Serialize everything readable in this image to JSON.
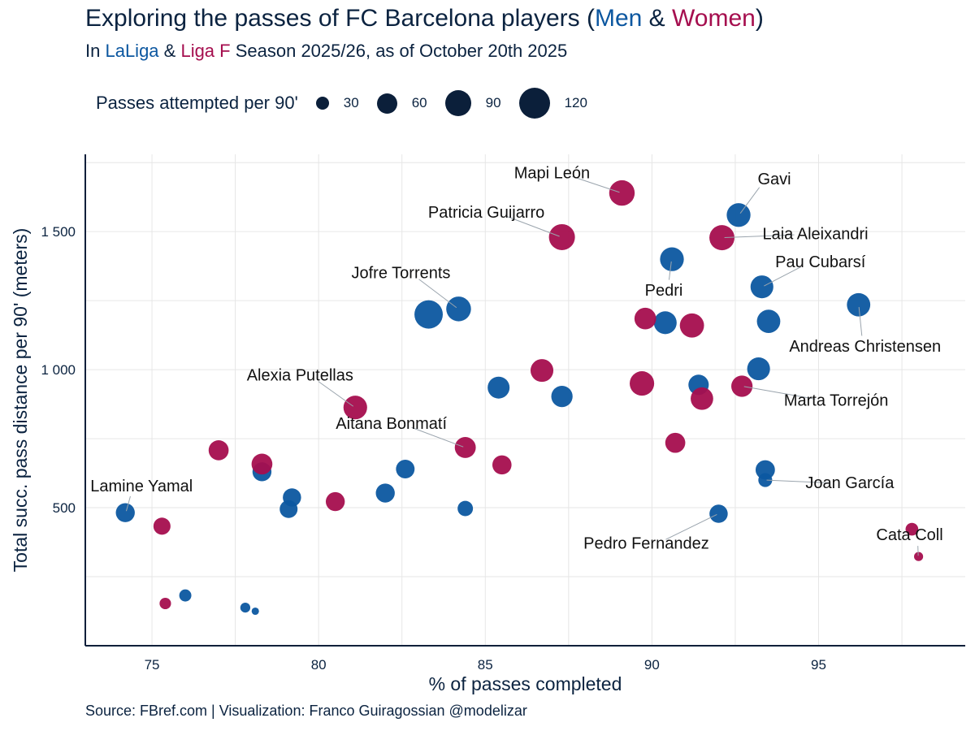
{
  "header": {
    "title_parts": [
      "Exploring the passes of FC Barcelona players (",
      "Men",
      " & ",
      "Women",
      ")"
    ],
    "subtitle_parts": [
      "In ",
      "LaLiga",
      " & ",
      "Liga F",
      " Season 2025/26, as of October 20th 2025"
    ]
  },
  "legend": {
    "title": "Passes attempted per 90'",
    "items": [
      {
        "label": "30",
        "value": 30
      },
      {
        "label": "60",
        "value": 60
      },
      {
        "label": "90",
        "value": 90
      },
      {
        "label": "120",
        "value": 120
      }
    ]
  },
  "colors": {
    "men": "#0c57a0",
    "women": "#a50e4e",
    "text": "#0b2340",
    "axis": "#0b1f3a",
    "grid": "#e6e6e6"
  },
  "source": "Source: FBref.com | Visualization: Franco Guiragossian @modelizar",
  "chart_data": {
    "type": "scatter",
    "title": "Exploring the passes of FC Barcelona players (Men & Women)",
    "xlabel": "% of passes completed",
    "ylabel": "Total succ. pass distance per 90' (meters)",
    "xlim": [
      73,
      99.4
    ],
    "ylim": [
      0,
      1780
    ],
    "xticks": [
      75,
      80,
      85,
      90,
      95
    ],
    "yticks": [
      500,
      1000,
      1500
    ],
    "ytick_labels": [
      "500",
      "1 000",
      "1 500"
    ],
    "grid": true,
    "size_variable": "Passes attempted per 90'",
    "series": [
      {
        "name": "Men",
        "points": [
          {
            "x": 92.6,
            "y": 1560,
            "size": 75,
            "label": "Gavi"
          },
          {
            "x": 90.6,
            "y": 1400,
            "size": 75,
            "label": "Pedri"
          },
          {
            "x": 93.3,
            "y": 1300,
            "size": 68,
            "label": "Pau Cubarsí"
          },
          {
            "x": 96.2,
            "y": 1235,
            "size": 72,
            "label": "Andreas Christensen"
          },
          {
            "x": 93.5,
            "y": 1175,
            "size": 72,
            "label": ""
          },
          {
            "x": 90.4,
            "y": 1170,
            "size": 68,
            "label": ""
          },
          {
            "x": 83.3,
            "y": 1200,
            "size": 112,
            "label": ""
          },
          {
            "x": 84.2,
            "y": 1220,
            "size": 82,
            "label": "Jofre Torrents"
          },
          {
            "x": 93.2,
            "y": 1003,
            "size": 68,
            "label": ""
          },
          {
            "x": 91.4,
            "y": 945,
            "size": 52,
            "label": ""
          },
          {
            "x": 85.4,
            "y": 935,
            "size": 62,
            "label": ""
          },
          {
            "x": 87.3,
            "y": 903,
            "size": 58,
            "label": ""
          },
          {
            "x": 93.4,
            "y": 637,
            "size": 46,
            "label": ""
          },
          {
            "x": 93.4,
            "y": 600,
            "size": 20,
            "label": "Joan García"
          },
          {
            "x": 92.0,
            "y": 478,
            "size": 40,
            "label": "Pedro Fernandez"
          },
          {
            "x": 82.6,
            "y": 640,
            "size": 42,
            "label": ""
          },
          {
            "x": 82.0,
            "y": 553,
            "size": 44,
            "label": ""
          },
          {
            "x": 79.2,
            "y": 537,
            "size": 40,
            "label": ""
          },
          {
            "x": 79.1,
            "y": 495,
            "size": 38,
            "label": ""
          },
          {
            "x": 78.3,
            "y": 630,
            "size": 44,
            "label": ""
          },
          {
            "x": 74.2,
            "y": 482,
            "size": 44,
            "label": "Lamine Yamal"
          },
          {
            "x": 84.4,
            "y": 497,
            "size": 26,
            "label": ""
          },
          {
            "x": 76.0,
            "y": 182,
            "size": 14,
            "label": ""
          },
          {
            "x": 77.8,
            "y": 138,
            "size": 8,
            "label": ""
          },
          {
            "x": 78.1,
            "y": 125,
            "size": 3,
            "label": ""
          }
        ]
      },
      {
        "name": "Women",
        "points": [
          {
            "x": 89.1,
            "y": 1640,
            "size": 88,
            "label": "Mapi León"
          },
          {
            "x": 87.3,
            "y": 1480,
            "size": 92,
            "label": "Patricia Guijarro"
          },
          {
            "x": 92.1,
            "y": 1478,
            "size": 85,
            "label": "Laia Aleixandri"
          },
          {
            "x": 89.8,
            "y": 1185,
            "size": 60,
            "label": ""
          },
          {
            "x": 91.2,
            "y": 1160,
            "size": 78,
            "label": ""
          },
          {
            "x": 86.7,
            "y": 997,
            "size": 68,
            "label": ""
          },
          {
            "x": 89.7,
            "y": 950,
            "size": 80,
            "label": ""
          },
          {
            "x": 92.7,
            "y": 940,
            "size": 58,
            "label": "Marta Torrejón"
          },
          {
            "x": 91.5,
            "y": 895,
            "size": 66,
            "label": ""
          },
          {
            "x": 81.1,
            "y": 863,
            "size": 74,
            "label": "Alexia Putellas"
          },
          {
            "x": 84.4,
            "y": 718,
            "size": 56,
            "label": "Aitana Bonmatí"
          },
          {
            "x": 90.7,
            "y": 735,
            "size": 50,
            "label": ""
          },
          {
            "x": 85.5,
            "y": 655,
            "size": 45,
            "label": ""
          },
          {
            "x": 77.0,
            "y": 708,
            "size": 50,
            "label": ""
          },
          {
            "x": 78.3,
            "y": 658,
            "size": 55,
            "label": ""
          },
          {
            "x": 80.5,
            "y": 522,
            "size": 44,
            "label": ""
          },
          {
            "x": 75.3,
            "y": 433,
            "size": 34,
            "label": ""
          },
          {
            "x": 75.4,
            "y": 153,
            "size": 12,
            "label": ""
          },
          {
            "x": 97.8,
            "y": 422,
            "size": 16,
            "label": ""
          },
          {
            "x": 98.0,
            "y": 323,
            "size": 6,
            "label": "Cata Coll"
          }
        ]
      }
    ]
  }
}
